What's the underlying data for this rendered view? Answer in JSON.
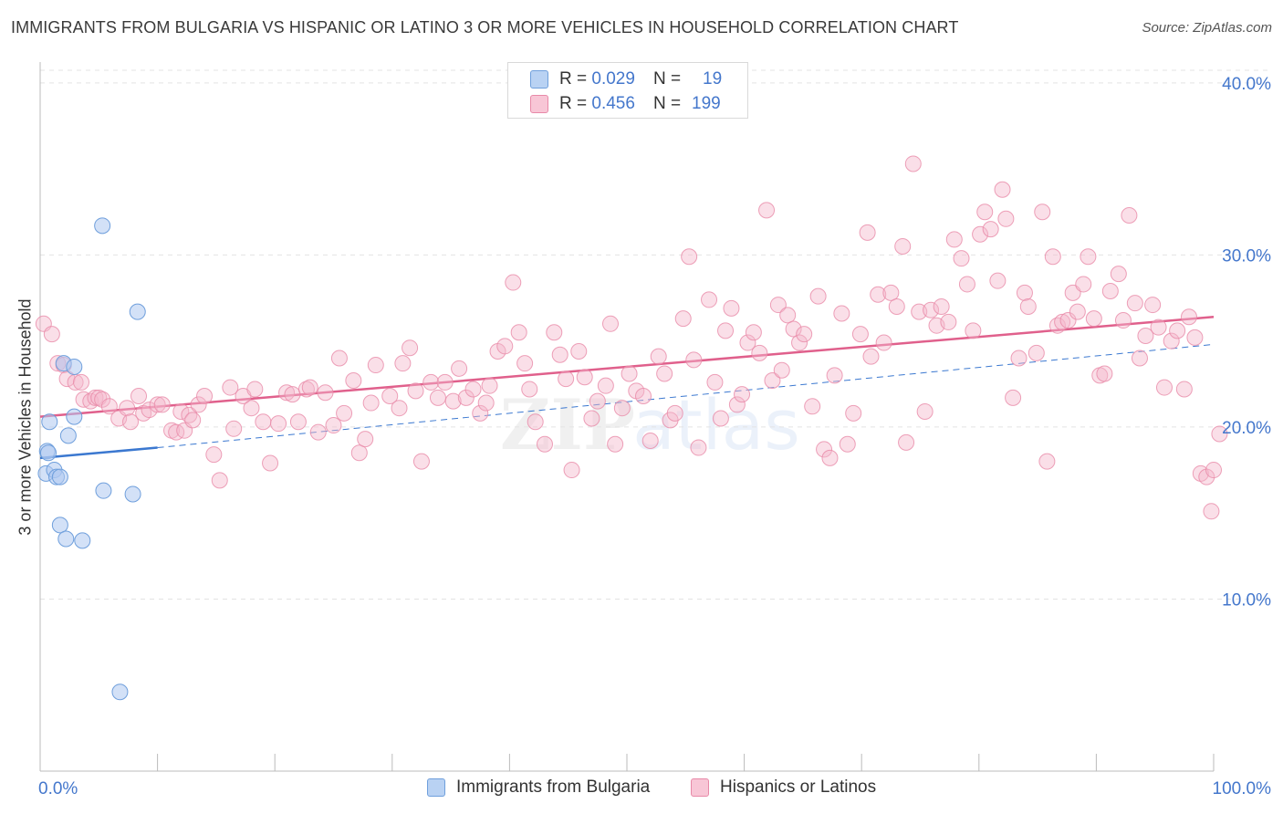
{
  "header": {
    "title": "IMMIGRANTS FROM BULGARIA VS HISPANIC OR LATINO 3 OR MORE VEHICLES IN HOUSEHOLD CORRELATION CHART",
    "source": "Source: ZipAtlas.com"
  },
  "legend": {
    "r_label": "R =",
    "n_label": "N =",
    "rows": [
      {
        "r": "0.029",
        "n": "19"
      },
      {
        "r": "0.456",
        "n": "199"
      }
    ]
  },
  "watermark": {
    "zip": "ZIP",
    "atlas": "atlas"
  },
  "colors": {
    "blue_fill": "#aec9f0",
    "blue_stroke": "#6f9fdc",
    "blue_line": "#3b78d0",
    "pink_fill": "#f4b8cc",
    "pink_stroke": "#e889a8",
    "pink_line": "#e0608c",
    "tick_label": "#4477cc"
  },
  "chart_data": {
    "type": "scatter",
    "title": "IMMIGRANTS FROM BULGARIA VS HISPANIC OR LATINO 3 OR MORE VEHICLES IN HOUSEHOLD CORRELATION CHART",
    "xlabel": "",
    "ylabel": "3 or more Vehicles in Household",
    "xlim": [
      0,
      100
    ],
    "ylim": [
      0,
      41
    ],
    "x_tick_labels": [
      "0.0%",
      "100.0%"
    ],
    "y_ticks": [
      10,
      20,
      30,
      40
    ],
    "y_tick_labels": [
      "10.0%",
      "20.0%",
      "30.0%",
      "40.0%"
    ],
    "series": [
      {
        "name": "Immigrants from Bulgaria",
        "color": "blue",
        "trend": {
          "x": [
            0,
            10
          ],
          "y": [
            18.2,
            18.8
          ]
        },
        "trend_dashed": {
          "x": [
            10,
            100
          ],
          "y": [
            18.8,
            24.8
          ]
        },
        "points": [
          [
            0.5,
            17.3
          ],
          [
            0.6,
            18.6
          ],
          [
            0.7,
            18.5
          ],
          [
            0.8,
            20.3
          ],
          [
            1.2,
            17.5
          ],
          [
            1.4,
            17.1
          ],
          [
            1.7,
            17.1
          ],
          [
            1.7,
            14.3
          ],
          [
            2.2,
            13.5
          ],
          [
            2.0,
            23.7
          ],
          [
            2.9,
            23.5
          ],
          [
            2.9,
            20.6
          ],
          [
            2.4,
            19.5
          ],
          [
            3.6,
            13.4
          ],
          [
            5.3,
            31.7
          ],
          [
            5.4,
            16.3
          ],
          [
            8.3,
            26.7
          ],
          [
            7.9,
            16.1
          ],
          [
            6.8,
            4.6
          ]
        ]
      },
      {
        "name": "Hispanics or Latinos",
        "color": "pink",
        "trend": {
          "x": [
            0,
            100
          ],
          "y": [
            20.6,
            26.4
          ]
        },
        "points": [
          [
            0.3,
            26.0
          ],
          [
            1.0,
            25.4
          ],
          [
            1.5,
            23.7
          ],
          [
            2.0,
            23.6
          ],
          [
            2.3,
            22.8
          ],
          [
            3.0,
            22.6
          ],
          [
            3.5,
            22.6
          ],
          [
            3.7,
            21.6
          ],
          [
            4.3,
            21.5
          ],
          [
            4.7,
            21.7
          ],
          [
            5.0,
            21.7
          ],
          [
            5.3,
            21.6
          ],
          [
            5.9,
            21.2
          ],
          [
            6.7,
            20.5
          ],
          [
            7.4,
            21.1
          ],
          [
            7.7,
            20.3
          ],
          [
            8.4,
            21.8
          ],
          [
            8.8,
            20.8
          ],
          [
            9.3,
            21.0
          ],
          [
            10.0,
            21.3
          ],
          [
            10.4,
            21.3
          ],
          [
            11.2,
            19.8
          ],
          [
            11.6,
            19.7
          ],
          [
            12.0,
            20.9
          ],
          [
            12.3,
            19.8
          ],
          [
            12.7,
            20.7
          ],
          [
            13.0,
            20.4
          ],
          [
            13.5,
            21.3
          ],
          [
            14.0,
            21.8
          ],
          [
            14.8,
            18.4
          ],
          [
            15.3,
            16.9
          ],
          [
            16.2,
            22.3
          ],
          [
            16.5,
            19.9
          ],
          [
            17.3,
            21.8
          ],
          [
            18.0,
            21.1
          ],
          [
            18.3,
            22.2
          ],
          [
            19.0,
            20.3
          ],
          [
            19.6,
            17.9
          ],
          [
            20.3,
            20.2
          ],
          [
            21.0,
            22.0
          ],
          [
            21.5,
            21.9
          ],
          [
            22.0,
            20.3
          ],
          [
            22.7,
            22.2
          ],
          [
            23.0,
            22.3
          ],
          [
            23.7,
            19.7
          ],
          [
            24.3,
            22.0
          ],
          [
            25.0,
            20.1
          ],
          [
            25.5,
            24.0
          ],
          [
            25.9,
            20.8
          ],
          [
            26.7,
            22.7
          ],
          [
            27.2,
            18.5
          ],
          [
            27.7,
            19.3
          ],
          [
            28.2,
            21.4
          ],
          [
            28.6,
            23.6
          ],
          [
            29.8,
            21.8
          ],
          [
            30.6,
            21.1
          ],
          [
            30.9,
            23.7
          ],
          [
            31.5,
            24.6
          ],
          [
            32.0,
            22.1
          ],
          [
            32.5,
            18.0
          ],
          [
            33.3,
            22.6
          ],
          [
            33.9,
            21.7
          ],
          [
            34.5,
            22.6
          ],
          [
            35.2,
            21.5
          ],
          [
            35.7,
            23.4
          ],
          [
            36.3,
            21.7
          ],
          [
            36.9,
            22.2
          ],
          [
            37.5,
            20.8
          ],
          [
            38.0,
            21.4
          ],
          [
            38.3,
            22.4
          ],
          [
            39.0,
            24.4
          ],
          [
            39.6,
            24.7
          ],
          [
            40.3,
            28.4
          ],
          [
            40.8,
            25.5
          ],
          [
            41.3,
            23.7
          ],
          [
            41.7,
            22.2
          ],
          [
            42.2,
            20.3
          ],
          [
            43.0,
            19.0
          ],
          [
            43.8,
            25.5
          ],
          [
            44.3,
            24.2
          ],
          [
            44.8,
            22.8
          ],
          [
            45.3,
            17.5
          ],
          [
            45.9,
            24.4
          ],
          [
            46.4,
            22.9
          ],
          [
            47.0,
            20.5
          ],
          [
            47.5,
            21.5
          ],
          [
            48.2,
            22.4
          ],
          [
            48.6,
            26.0
          ],
          [
            49.0,
            19.0
          ],
          [
            49.6,
            21.1
          ],
          [
            50.2,
            23.1
          ],
          [
            50.8,
            22.1
          ],
          [
            51.4,
            21.8
          ],
          [
            52.0,
            19.2
          ],
          [
            52.7,
            24.1
          ],
          [
            53.2,
            23.1
          ],
          [
            53.7,
            20.4
          ],
          [
            54.1,
            20.8
          ],
          [
            54.8,
            26.3
          ],
          [
            55.3,
            29.9
          ],
          [
            55.7,
            23.9
          ],
          [
            56.1,
            18.8
          ],
          [
            57.0,
            27.4
          ],
          [
            57.5,
            22.6
          ],
          [
            58.0,
            20.5
          ],
          [
            58.4,
            25.6
          ],
          [
            58.9,
            26.9
          ],
          [
            59.4,
            21.3
          ],
          [
            59.8,
            21.9
          ],
          [
            60.3,
            24.9
          ],
          [
            60.8,
            25.5
          ],
          [
            61.3,
            24.3
          ],
          [
            61.9,
            32.6
          ],
          [
            62.4,
            22.7
          ],
          [
            62.9,
            27.1
          ],
          [
            63.2,
            23.3
          ],
          [
            63.7,
            26.5
          ],
          [
            64.2,
            25.7
          ],
          [
            64.7,
            24.9
          ],
          [
            65.1,
            25.4
          ],
          [
            65.8,
            21.2
          ],
          [
            66.3,
            27.6
          ],
          [
            66.8,
            18.7
          ],
          [
            67.3,
            18.2
          ],
          [
            67.7,
            23.0
          ],
          [
            68.3,
            26.6
          ],
          [
            68.8,
            19.0
          ],
          [
            69.3,
            20.8
          ],
          [
            69.9,
            25.4
          ],
          [
            70.5,
            31.3
          ],
          [
            70.8,
            24.1
          ],
          [
            71.4,
            27.7
          ],
          [
            71.9,
            24.9
          ],
          [
            72.5,
            27.8
          ],
          [
            73.0,
            27.0
          ],
          [
            73.5,
            30.5
          ],
          [
            73.8,
            19.1
          ],
          [
            74.4,
            35.3
          ],
          [
            74.9,
            26.7
          ],
          [
            75.4,
            20.9
          ],
          [
            75.9,
            26.8
          ],
          [
            76.4,
            25.9
          ],
          [
            76.8,
            27.0
          ],
          [
            77.4,
            26.1
          ],
          [
            77.9,
            30.9
          ],
          [
            78.5,
            29.8
          ],
          [
            79.0,
            28.3
          ],
          [
            79.5,
            25.6
          ],
          [
            80.1,
            31.2
          ],
          [
            80.5,
            32.5
          ],
          [
            81.0,
            31.5
          ],
          [
            81.6,
            28.5
          ],
          [
            82.0,
            33.8
          ],
          [
            82.3,
            32.1
          ],
          [
            82.9,
            21.7
          ],
          [
            83.4,
            24.0
          ],
          [
            83.9,
            27.8
          ],
          [
            84.2,
            27.0
          ],
          [
            84.9,
            24.3
          ],
          [
            85.4,
            32.5
          ],
          [
            85.8,
            18.0
          ],
          [
            86.3,
            29.9
          ],
          [
            86.7,
            25.9
          ],
          [
            87.1,
            26.1
          ],
          [
            87.6,
            26.2
          ],
          [
            88.0,
            27.8
          ],
          [
            88.4,
            26.7
          ],
          [
            88.9,
            28.3
          ],
          [
            89.3,
            29.9
          ],
          [
            89.8,
            26.3
          ],
          [
            90.3,
            23.0
          ],
          [
            90.7,
            23.1
          ],
          [
            91.2,
            27.9
          ],
          [
            91.9,
            28.9
          ],
          [
            92.3,
            26.2
          ],
          [
            92.8,
            32.3
          ],
          [
            93.3,
            27.2
          ],
          [
            93.7,
            24.0
          ],
          [
            94.2,
            25.3
          ],
          [
            94.8,
            27.1
          ],
          [
            95.3,
            25.8
          ],
          [
            95.8,
            22.3
          ],
          [
            96.4,
            25.0
          ],
          [
            96.9,
            25.6
          ],
          [
            97.5,
            22.2
          ],
          [
            97.9,
            26.4
          ],
          [
            98.4,
            25.2
          ],
          [
            98.9,
            17.3
          ],
          [
            99.4,
            17.1
          ],
          [
            99.8,
            15.1
          ],
          [
            100.0,
            17.5
          ],
          [
            100.5,
            19.6
          ]
        ]
      }
    ]
  },
  "bottom_legend": [
    {
      "label": "Immigrants from Bulgaria"
    },
    {
      "label": "Hispanics or Latinos"
    }
  ]
}
